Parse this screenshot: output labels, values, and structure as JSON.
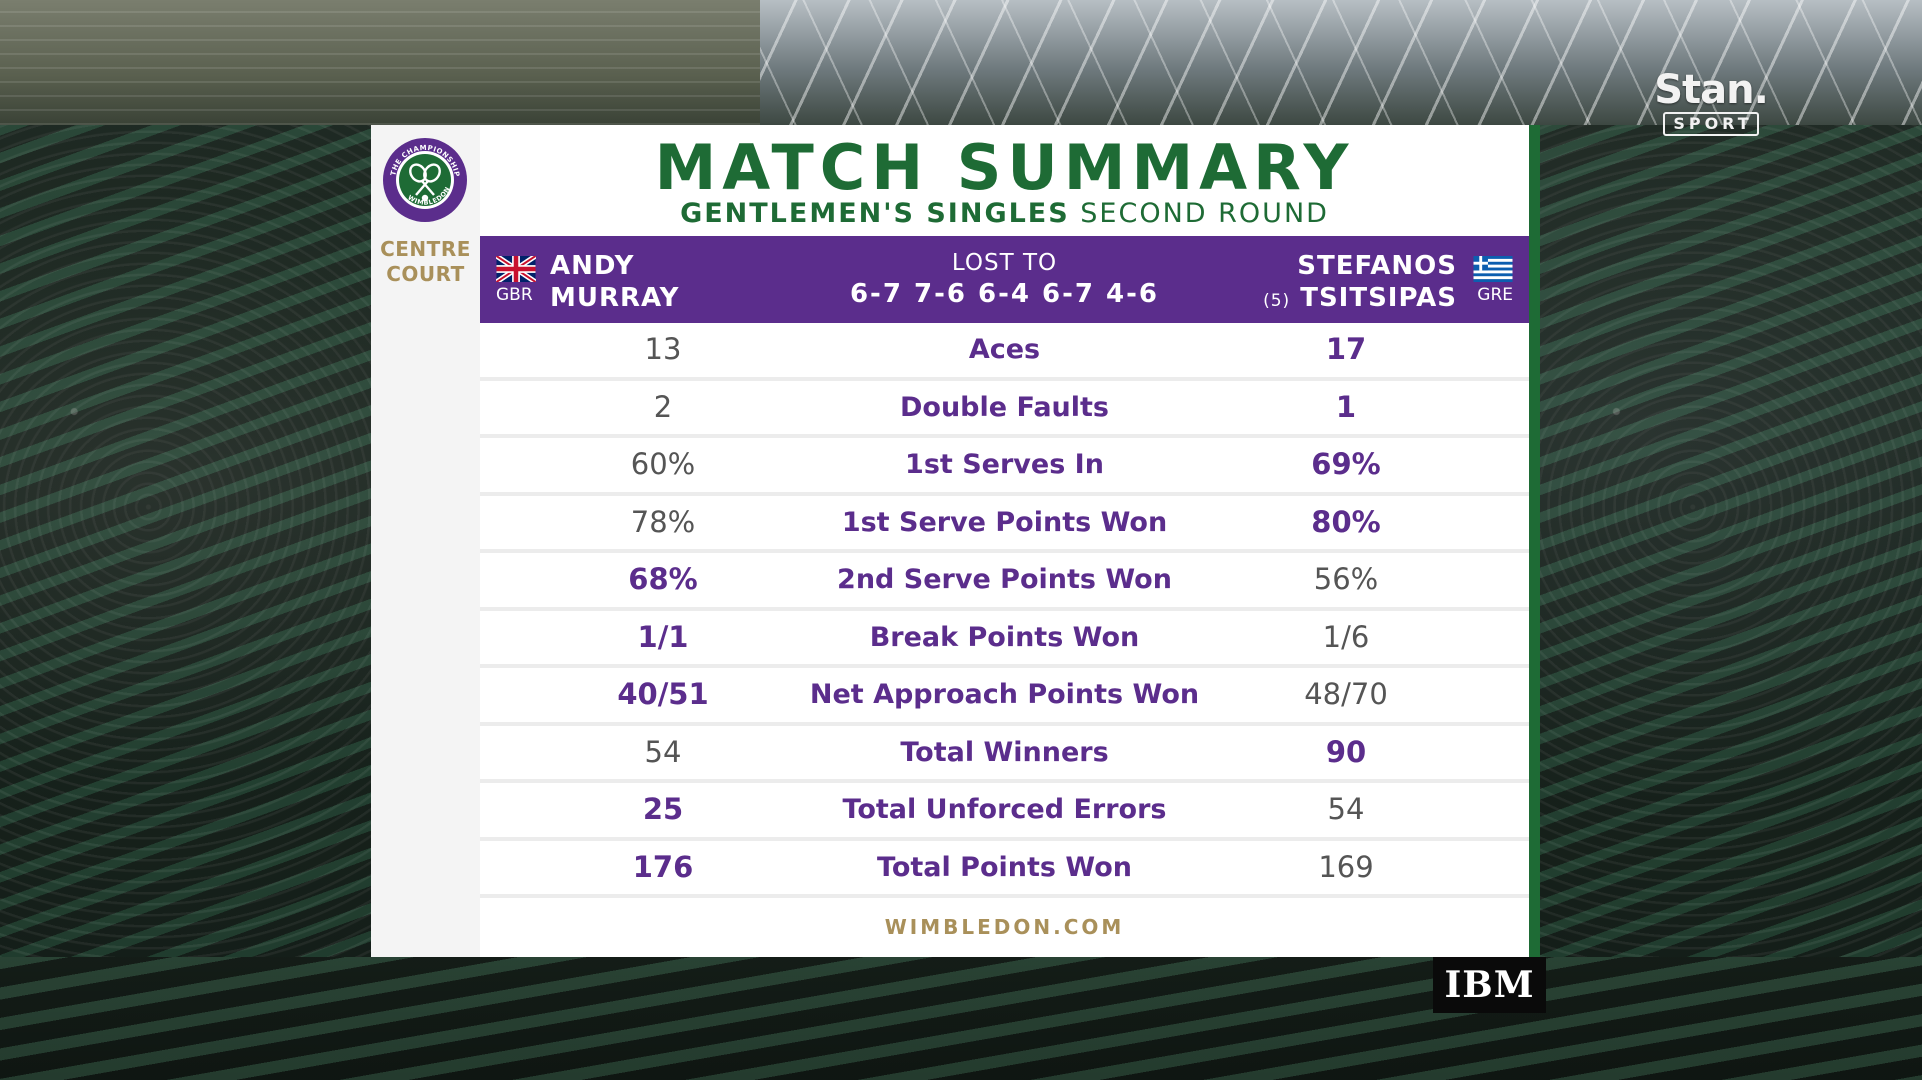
{
  "broadcaster": {
    "name": "Stan.",
    "sub": "SPORT"
  },
  "logo": {
    "name": "Wimbledon The Championships",
    "ring_text": "THE CHAMPIONSHIPS · WIMBLEDON"
  },
  "court": {
    "line1": "CENTRE",
    "line2": "COURT"
  },
  "title": "MATCH SUMMARY",
  "subtitle": {
    "event": "GENTLEMEN'S SINGLES",
    "round": "SECOND ROUND"
  },
  "colors": {
    "purple": "#5b2d8c",
    "green": "#1e6b35",
    "gold": "#a9905a"
  },
  "player_left": {
    "first": "ANDY",
    "last": "MURRAY",
    "country": "GBR",
    "flag": "uk-flag"
  },
  "player_right": {
    "first": "STEFANOS",
    "last": "TSITSIPAS",
    "seed": "(5)",
    "country": "GRE",
    "flag": "greece-flag"
  },
  "result": {
    "label": "LOST TO",
    "score": "6-7 7-6 6-4 6-7 4-6"
  },
  "stats": [
    {
      "label": "Aces",
      "left": "13",
      "right": "17",
      "winner": "right"
    },
    {
      "label": "Double Faults",
      "left": "2",
      "right": "1",
      "winner": "right"
    },
    {
      "label": "1st Serves In",
      "left": "60%",
      "right": "69%",
      "winner": "right"
    },
    {
      "label": "1st Serve Points Won",
      "left": "78%",
      "right": "80%",
      "winner": "right"
    },
    {
      "label": "2nd Serve Points Won",
      "left": "68%",
      "right": "56%",
      "winner": "left"
    },
    {
      "label": "Break Points Won",
      "left": "1/1",
      "right": "1/6",
      "winner": "left"
    },
    {
      "label": "Net Approach Points Won",
      "left": "40/51",
      "right": "48/70",
      "winner": "left"
    },
    {
      "label": "Total Winners",
      "left": "54",
      "right": "90",
      "winner": "right"
    },
    {
      "label": "Total Unforced Errors",
      "left": "25",
      "right": "54",
      "winner": "left"
    },
    {
      "label": "Total Points Won",
      "left": "176",
      "right": "169",
      "winner": "left"
    }
  ],
  "footer": "WIMBLEDON.COM",
  "sponsor": "IBM"
}
